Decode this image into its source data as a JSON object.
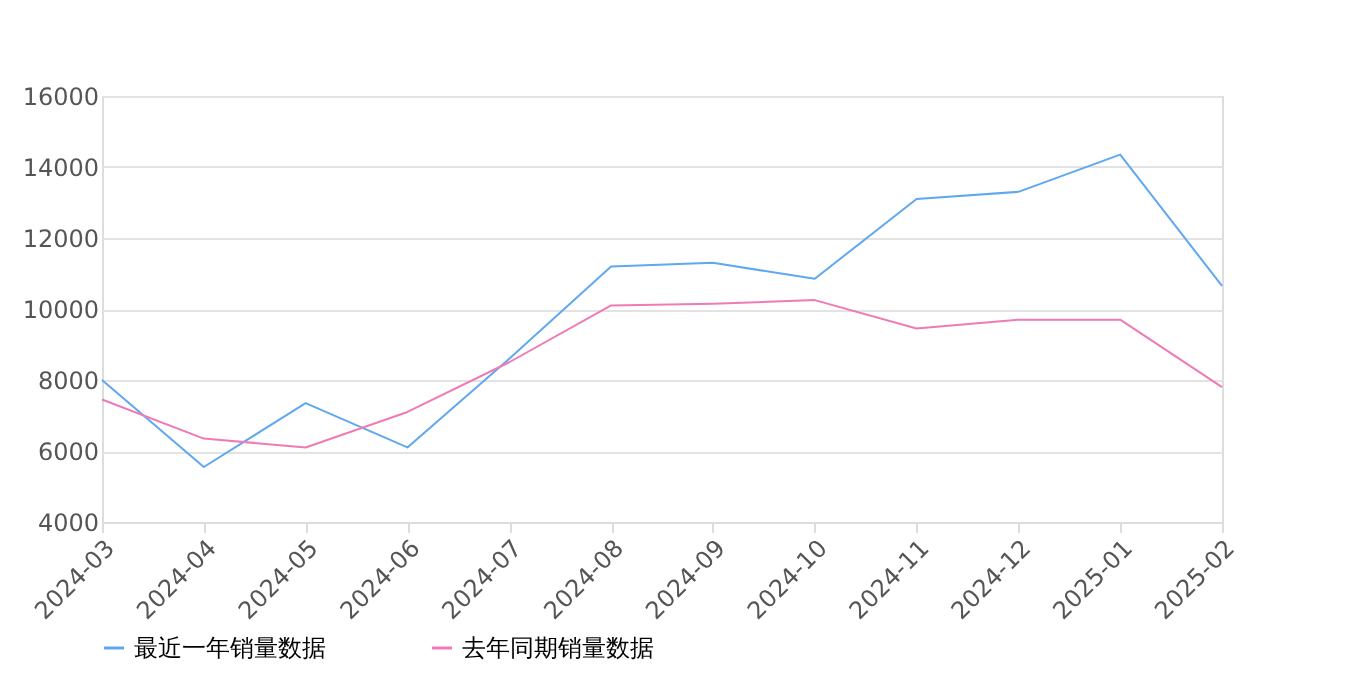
{
  "chart_data": {
    "type": "line",
    "categories": [
      "2024-03",
      "2024-04",
      "2024-05",
      "2024-06",
      "2024-07",
      "2024-08",
      "2024-09",
      "2024-10",
      "2024-11",
      "2024-12",
      "2025-01",
      "2025-02"
    ],
    "series": [
      {
        "name": "最近一年销量数据",
        "color": "#5fa8f0",
        "values": [
          8000,
          5550,
          7350,
          6100,
          8600,
          11200,
          11300,
          10850,
          13100,
          13300,
          14350,
          10650
        ]
      },
      {
        "name": "去年同期销量数据",
        "color": "#f07ab4",
        "values": [
          7450,
          6350,
          6100,
          7100,
          8500,
          10100,
          10150,
          10250,
          9450,
          9700,
          9700,
          7800
        ]
      }
    ],
    "ylim": [
      4000,
      16000
    ],
    "yticks": [
      4000,
      6000,
      8000,
      10000,
      12000,
      14000,
      16000
    ],
    "grid": "y",
    "legend": "bottom",
    "marker": "none",
    "line_style": "solid"
  }
}
